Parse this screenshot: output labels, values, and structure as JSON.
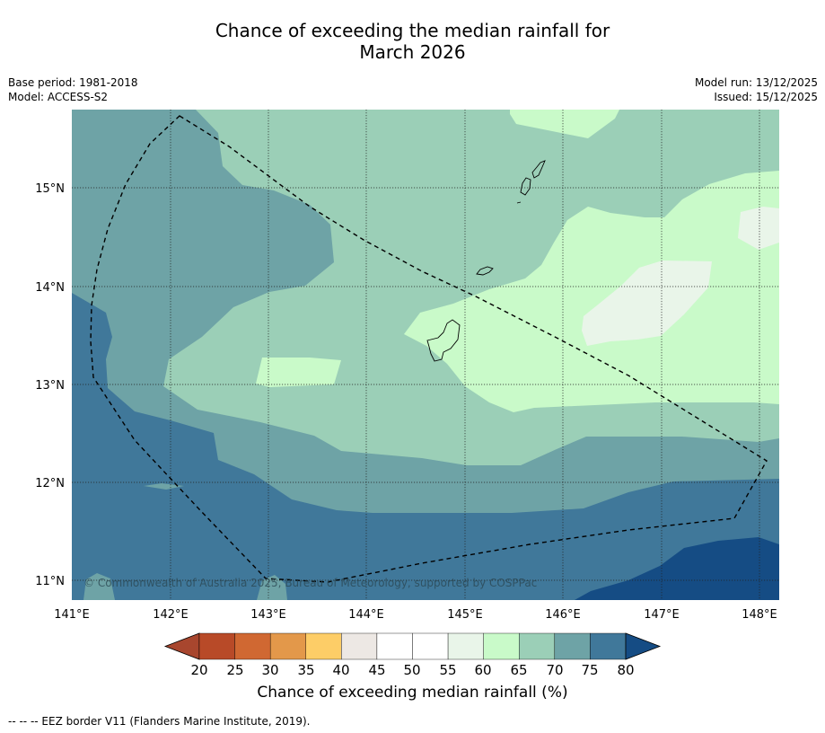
{
  "title": {
    "line1": "Chance of exceeding the median rainfall for",
    "line2": "March 2026"
  },
  "meta": {
    "base_period": "Base period: 1981-2018",
    "model": "Model: ACCESS-S2",
    "model_run": "Model run: 13/12/2025",
    "issued": "Issued: 15/12/2025"
  },
  "map": {
    "lon_labels": [
      "141°E",
      "142°E",
      "143°E",
      "144°E",
      "145°E",
      "146°E",
      "147°E",
      "148°E"
    ],
    "lat_labels": [
      "15°N",
      "14°N",
      "13°N",
      "12°N",
      "11°N"
    ],
    "copyright": "© Commonwealth of Australia 2025, Bureau of Meteorology, supported by COSPPac"
  },
  "colorbar": {
    "ticks": [
      "20",
      "25",
      "30",
      "35",
      "40",
      "45",
      "50",
      "55",
      "60",
      "65",
      "70",
      "75",
      "80"
    ],
    "label": "Chance of exceeding median rainfall (%)",
    "colors": [
      "#a8462e",
      "#b84a28",
      "#d06832",
      "#e3984a",
      "#fdcd67",
      "#ede8e4",
      "#ffffff",
      "#ffffff",
      "#e9f5e9",
      "#c9fac9",
      "#9bcfb7",
      "#6ea3a6",
      "#40789a",
      "#154c84"
    ]
  },
  "legend": {
    "eez": "--  --  -- EEZ border V11 (Flanders Marine Institute, 2019)."
  }
}
